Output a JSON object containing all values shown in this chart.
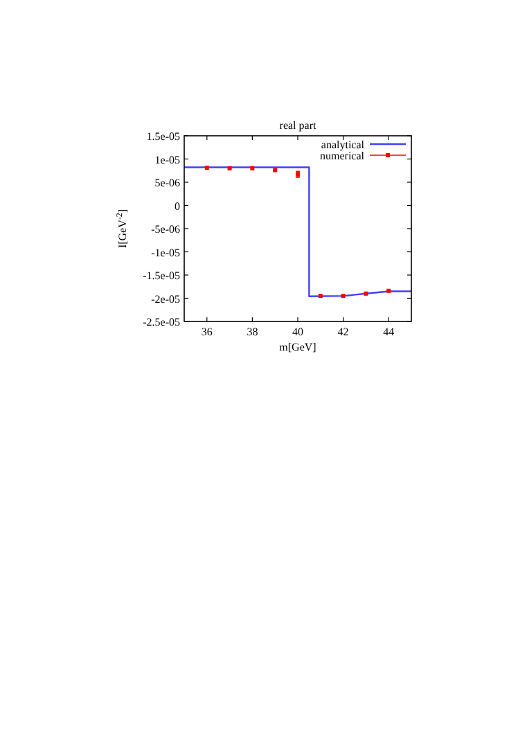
{
  "chart_data": {
    "type": "line",
    "title": "real part",
    "xlabel": "m[GeV]",
    "ylabel": "I[GeV$^{-2}$]",
    "xlim": [
      35,
      45
    ],
    "xticks": [
      36,
      38,
      40,
      42,
      44
    ],
    "ylim": [
      -2.5e-05,
      1.5e-05
    ],
    "yticks": [
      {
        "value": -2.5e-05,
        "label": "-2.5e-05"
      },
      {
        "value": -2e-05,
        "label": "-2e-05"
      },
      {
        "value": -1.5e-05,
        "label": "-1.5e-05"
      },
      {
        "value": -1e-05,
        "label": "-1e-05"
      },
      {
        "value": -5e-06,
        "label": "-5e-06"
      },
      {
        "value": 0,
        "label": "0"
      },
      {
        "value": 5e-06,
        "label": "5e-06"
      },
      {
        "value": 1e-05,
        "label": "1e-05"
      },
      {
        "value": 1.5e-05,
        "label": "1.5e-05"
      }
    ],
    "grid": false,
    "legend": "top right",
    "series": [
      {
        "name": "analytical",
        "color": "#4040ff",
        "x": [
          35,
          40.5,
          40.5,
          42,
          43,
          44,
          45
        ],
        "values": [
          8.2e-06,
          8.2e-06,
          -1.96e-05,
          -1.95e-05,
          -1.9e-05,
          -1.85e-05,
          -1.85e-05
        ]
      },
      {
        "name": "numerical",
        "type": "scatter",
        "color": "#ff0000",
        "marker": "square",
        "x": [
          36,
          37,
          38,
          39,
          40,
          41,
          42,
          43,
          44
        ],
        "values": [
          8.1e-06,
          8e-06,
          8e-06,
          7.6e-06,
          6.7e-06,
          -1.95e-05,
          -1.95e-05,
          -1.9e-05,
          -1.84e-05
        ],
        "errors": [
          null,
          null,
          null,
          null,
          6e-07,
          null,
          null,
          null,
          null
        ]
      }
    ]
  }
}
